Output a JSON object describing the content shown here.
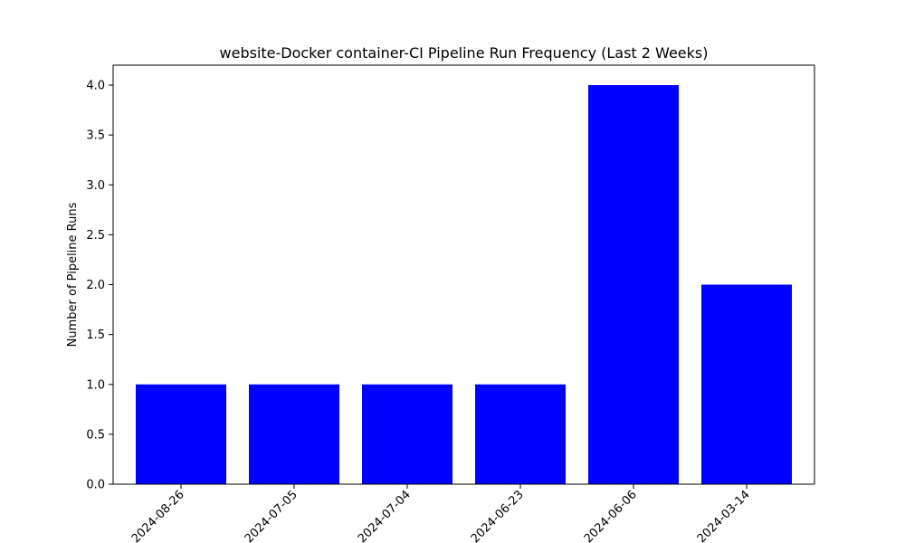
{
  "chart_data": {
    "type": "bar",
    "title": "website-Docker container-CI Pipeline Run Frequency (Last 2 Weeks)",
    "xlabel": "",
    "ylabel": "Number of Pipeline Runs",
    "categories": [
      "2024-08-26",
      "2024-07-05",
      "2024-07-04",
      "2024-06-23",
      "2024-06-06",
      "2024-03-14"
    ],
    "values": [
      1,
      1,
      1,
      1,
      4,
      2
    ],
    "ylim": [
      0,
      4.2
    ],
    "yticks": [
      "0.0",
      "0.5",
      "1.0",
      "1.5",
      "2.0",
      "2.5",
      "3.0",
      "3.5",
      "4.0"
    ],
    "bar_color": "#0000ff",
    "grid": false,
    "legend": "none"
  }
}
